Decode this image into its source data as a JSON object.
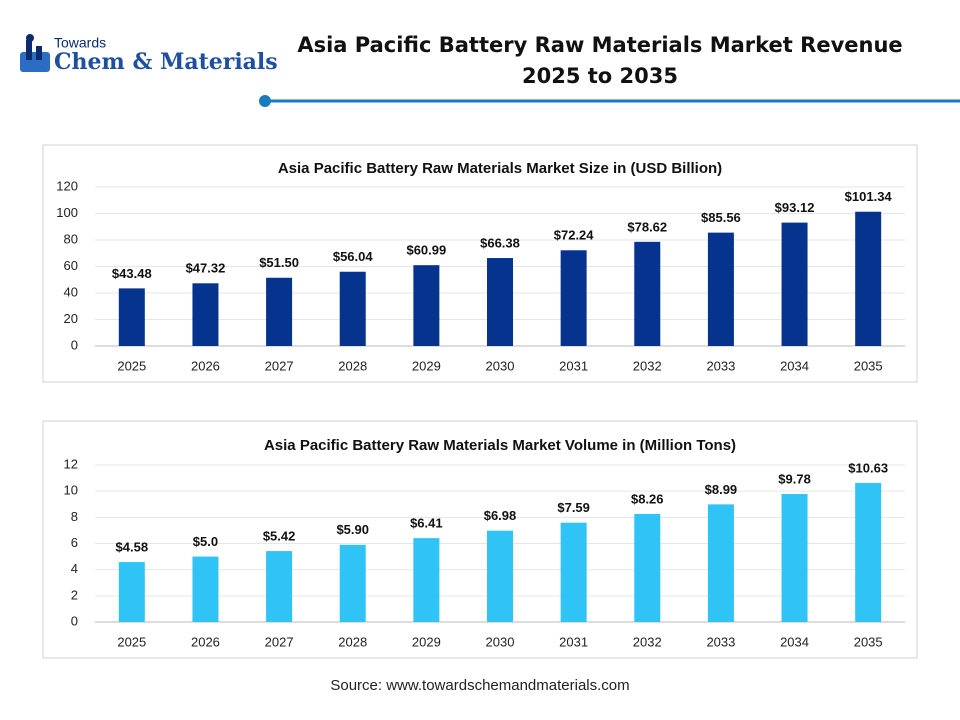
{
  "header": {
    "logo_small": "Towards",
    "logo_large": "Chem & Materials",
    "title": "Asia Pacific Battery Raw Materials Market Revenue 2025 to 2035"
  },
  "footer": {
    "source": "Source: www.towardschemandmaterials.com"
  },
  "chart_data": [
    {
      "type": "bar",
      "title": "Asia Pacific Battery Raw Materials Market Size in (USD Billion)",
      "categories": [
        "2025",
        "2026",
        "2027",
        "2028",
        "2029",
        "2030",
        "2031",
        "2032",
        "2033",
        "2034",
        "2035"
      ],
      "values": [
        43.48,
        47.32,
        51.5,
        56.04,
        60.99,
        66.38,
        72.24,
        78.62,
        85.56,
        93.12,
        101.34
      ],
      "value_labels": [
        "$43.48",
        "$47.32",
        "$51.50",
        "$56.04",
        "$60.99",
        "$66.38",
        "$72.24",
        "$78.62",
        "$85.56",
        "$93.12",
        "$101.34"
      ],
      "color": "#05338e",
      "ylim": [
        0,
        120
      ],
      "yticks": [
        0,
        20,
        40,
        60,
        80,
        100,
        120
      ],
      "grid": true
    },
    {
      "type": "bar",
      "title": "Asia Pacific Battery Raw Materials Market Volume in (Million Tons)",
      "categories": [
        "2025",
        "2026",
        "2027",
        "2028",
        "2029",
        "2030",
        "2031",
        "2032",
        "2033",
        "2034",
        "2035"
      ],
      "values": [
        4.58,
        5.0,
        5.42,
        5.9,
        6.41,
        6.98,
        7.59,
        8.26,
        8.99,
        9.78,
        10.63
      ],
      "value_labels": [
        "$4.58",
        "$5.0",
        "$5.42",
        "$5.90",
        "$6.41",
        "$6.98",
        "$7.59",
        "$8.26",
        "$8.99",
        "$9.78",
        "$10.63"
      ],
      "color": "#2fc3f6",
      "ylim": [
        0,
        12
      ],
      "yticks": [
        0,
        2,
        4,
        6,
        8,
        10,
        12
      ],
      "grid": true
    }
  ]
}
